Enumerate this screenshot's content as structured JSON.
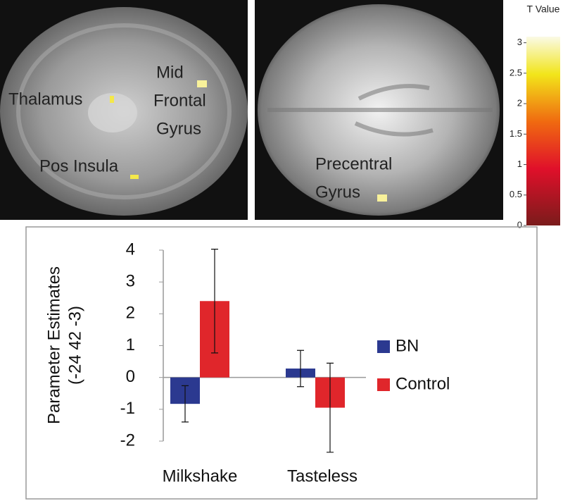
{
  "brain_images": [
    {
      "labels": [
        "Thalamus",
        "Mid",
        "Frontal",
        "Gyrus",
        "Pos Insula"
      ]
    },
    {
      "labels": [
        "Precentral",
        "Gyrus"
      ]
    }
  ],
  "colorbar": {
    "title": "T Value",
    "ylim": [
      0,
      3.1
    ],
    "yticks": [
      0,
      0.5,
      1,
      1.5,
      2,
      2.5,
      3
    ]
  },
  "chart_data": {
    "type": "bar",
    "ylabel": [
      "Parameter Estimates",
      "(-24 42 -3)"
    ],
    "categories": [
      "Milkshake",
      "Tasteless"
    ],
    "series": [
      {
        "name": "BN",
        "color": "#2b3990",
        "values": [
          -0.83,
          0.28
        ],
        "errors": [
          0.57,
          0.57
        ]
      },
      {
        "name": "Control",
        "color": "#e0262b",
        "values": [
          2.4,
          -0.95
        ],
        "errors": [
          1.63,
          1.4
        ]
      }
    ],
    "ylim": [
      -2,
      4
    ],
    "yticks": [
      -2,
      -1,
      0,
      1,
      2,
      3,
      4
    ]
  }
}
